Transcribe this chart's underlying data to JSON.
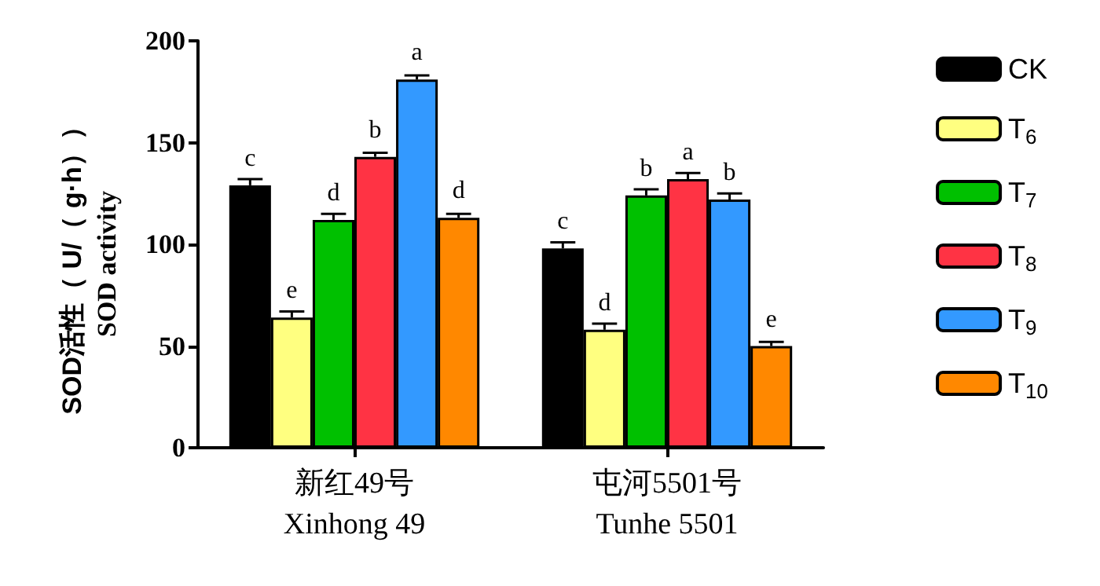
{
  "chart_data": {
    "type": "bar",
    "ylabel": "SOD活性（ U/（ g·h））\nSOD activity",
    "categories": [
      "新红49号\nXinhong 49",
      "屯河5501号\nTunhe 5501"
    ],
    "series": [
      {
        "name": "CK",
        "color": "#000000",
        "values": [
          129,
          98
        ],
        "errors": [
          3,
          3
        ],
        "value_labels": [
          "c",
          "c"
        ]
      },
      {
        "name": "T$_{6}$",
        "color": "#ffff80",
        "values": [
          64,
          58
        ],
        "errors": [
          3,
          3
        ],
        "value_labels": [
          "e",
          "d"
        ]
      },
      {
        "name": "T$_{7}$",
        "color": "#00c000",
        "values": [
          112,
          124
        ],
        "errors": [
          3,
          3
        ],
        "value_labels": [
          "d",
          "b"
        ]
      },
      {
        "name": "T$_{8}$",
        "color": "#ff3344",
        "values": [
          143,
          132
        ],
        "errors": [
          2,
          3
        ],
        "value_labels": [
          "b",
          "a"
        ]
      },
      {
        "name": "T$_{9}$",
        "color": "#3399ff",
        "values": [
          181,
          122
        ],
        "errors": [
          2,
          3
        ],
        "value_labels": [
          "a",
          "b"
        ]
      },
      {
        "name": "T$_{10}$",
        "color": "#ff8800",
        "values": [
          113,
          50
        ],
        "errors": [
          2,
          2
        ],
        "value_labels": [
          "d",
          "e"
        ]
      }
    ],
    "ylim": [
      0,
      200
    ],
    "yticks": [
      0,
      50,
      100,
      150,
      200
    ],
    "grid": false,
    "legend": "right"
  }
}
